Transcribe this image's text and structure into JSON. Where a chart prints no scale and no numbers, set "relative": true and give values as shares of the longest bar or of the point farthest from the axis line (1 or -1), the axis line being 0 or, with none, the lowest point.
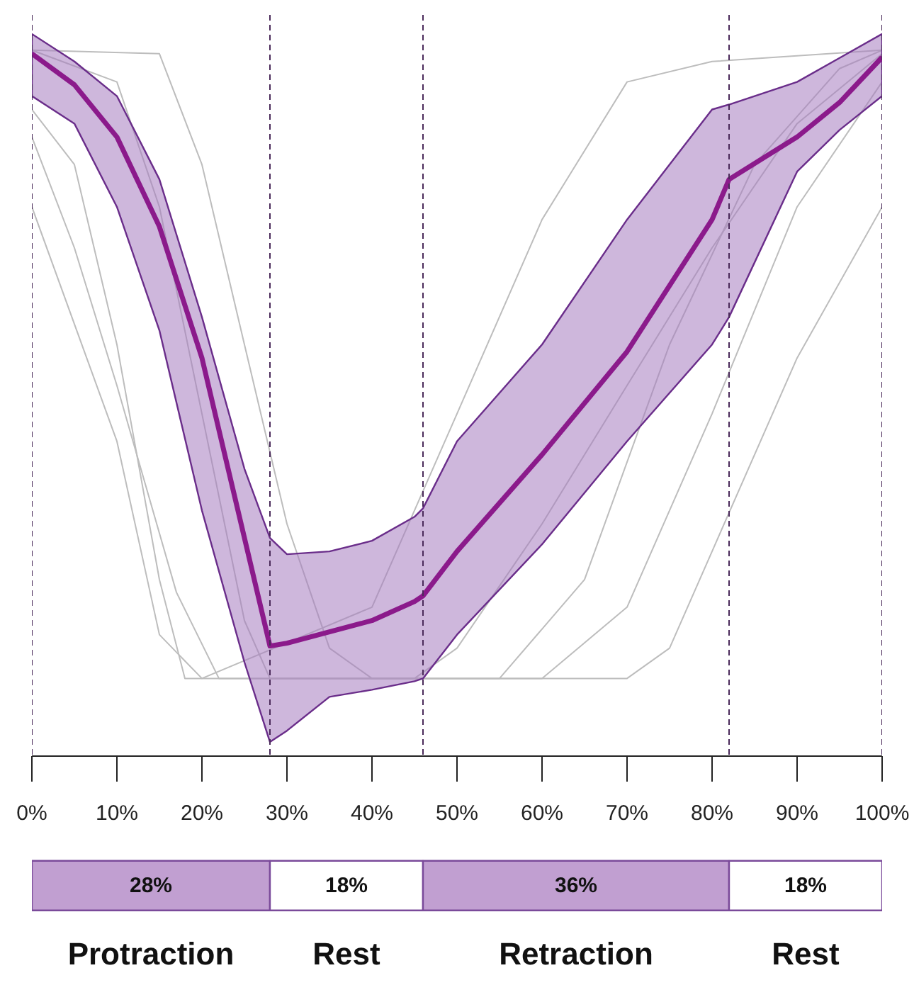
{
  "chart_data": [
    {
      "type": "line",
      "relative": true,
      "xlim": [
        0,
        100
      ],
      "xticks": [
        {
          "value": 0,
          "label": "0%"
        },
        {
          "value": 10,
          "label": "10%"
        },
        {
          "value": 20,
          "label": "20%"
        },
        {
          "value": 30,
          "label": "30%"
        },
        {
          "value": 40,
          "label": "40%"
        },
        {
          "value": 50,
          "label": "50%"
        },
        {
          "value": 60,
          "label": "60%"
        },
        {
          "value": 70,
          "label": "70%"
        },
        {
          "value": 80,
          "label": "80%"
        },
        {
          "value": 90,
          "label": "90%"
        },
        {
          "value": 100,
          "label": "100%"
        }
      ],
      "tick_labels": "x",
      "grid": false,
      "series": [
        {
          "color": "#bdbdbd",
          "x": [
            0,
            5,
            10,
            15,
            18,
            50,
            60,
            70,
            80,
            90,
            100
          ],
          "values": [
            0.916,
            0.838,
            0.583,
            0.25,
            0.11,
            0.11,
            0.11,
            0.211,
            0.485,
            0.778,
            0.955
          ]
        },
        {
          "color": "#bdbdbd",
          "x": [
            0,
            10,
            15,
            20,
            25,
            28,
            55,
            65,
            75,
            85,
            95,
            100
          ],
          "values": [
            1.0,
            0.955,
            0.778,
            0.485,
            0.192,
            0.11,
            0.11,
            0.25,
            0.583,
            0.838,
            0.974,
            1.0
          ]
        },
        {
          "color": "#bdbdbd",
          "x": [
            0,
            15,
            20,
            25,
            30,
            35,
            40,
            70,
            75,
            80,
            90,
            100
          ],
          "values": [
            1.0,
            0.995,
            0.838,
            0.583,
            0.329,
            0.153,
            0.11,
            0.11,
            0.153,
            0.29,
            0.564,
            0.778
          ]
        },
        {
          "color": "#bdbdbd",
          "x": [
            0,
            10,
            15,
            20,
            40,
            50,
            60,
            70,
            80,
            100
          ],
          "values": [
            0.778,
            0.446,
            0.172,
            0.11,
            0.211,
            0.485,
            0.76,
            0.955,
            0.984,
            1.0
          ]
        },
        {
          "color": "#bdbdbd",
          "x": [
            0,
            5,
            10,
            17,
            22,
            45,
            50,
            60,
            70,
            80,
            90,
            100
          ],
          "values": [
            0.877,
            0.72,
            0.525,
            0.232,
            0.11,
            0.11,
            0.153,
            0.329,
            0.525,
            0.72,
            0.896,
            0.995
          ]
        },
        {
          "color": "#8b1a8b",
          "x": [
            0,
            5,
            10,
            15,
            20,
            25,
            28,
            30,
            35,
            40,
            45,
            46,
            50,
            60,
            70,
            80,
            82,
            90,
            95,
            100
          ],
          "values": [
            0.995,
            0.951,
            0.877,
            0.75,
            0.564,
            0.309,
            0.156,
            0.16,
            0.176,
            0.192,
            0.219,
            0.227,
            0.29,
            0.427,
            0.573,
            0.76,
            0.817,
            0.877,
            0.926,
            0.99
          ],
          "lower": [
            0.935,
            0.896,
            0.778,
            0.603,
            0.348,
            0.133,
            0.02,
            0.036,
            0.084,
            0.094,
            0.106,
            0.11,
            0.172,
            0.3,
            0.446,
            0.583,
            0.622,
            0.828,
            0.887,
            0.935
          ],
          "upper": [
            1.023,
            0.984,
            0.935,
            0.817,
            0.622,
            0.407,
            0.309,
            0.286,
            0.29,
            0.305,
            0.339,
            0.351,
            0.446,
            0.583,
            0.76,
            0.916,
            0.923,
            0.955,
            0.989,
            1.023
          ]
        }
      ],
      "ref_lines": [
        {
          "axis": "x",
          "value": 0,
          "color": "#4a2a5a",
          "line_style": "dashed"
        },
        {
          "axis": "x",
          "value": 28,
          "color": "#4a2a5a",
          "line_style": "dashed"
        },
        {
          "axis": "x",
          "value": 46,
          "color": "#4a2a5a",
          "line_style": "dashed"
        },
        {
          "axis": "x",
          "value": 82,
          "color": "#4a2a5a",
          "line_style": "dashed"
        },
        {
          "axis": "x",
          "value": 100,
          "color": "#4a2a5a",
          "line_style": "dashed"
        }
      ]
    },
    {
      "type": "bar",
      "orientation": "horizontal",
      "stacked": true,
      "tick_labels": false,
      "categories": [
        null
      ],
      "series": [
        {
          "name": "Protraction",
          "color": "#c19fd1",
          "values": [
            28
          ],
          "value_labels": [
            "28%"
          ]
        },
        {
          "name": "Rest",
          "color": "#ffffff",
          "values": [
            18
          ],
          "value_labels": [
            "18%"
          ]
        },
        {
          "name": "Retraction",
          "color": "#c19fd1",
          "values": [
            36
          ],
          "value_labels": [
            "36%"
          ]
        },
        {
          "name": "Rest",
          "color": "#ffffff",
          "values": [
            18
          ],
          "value_labels": [
            "18%"
          ]
        }
      ]
    }
  ]
}
